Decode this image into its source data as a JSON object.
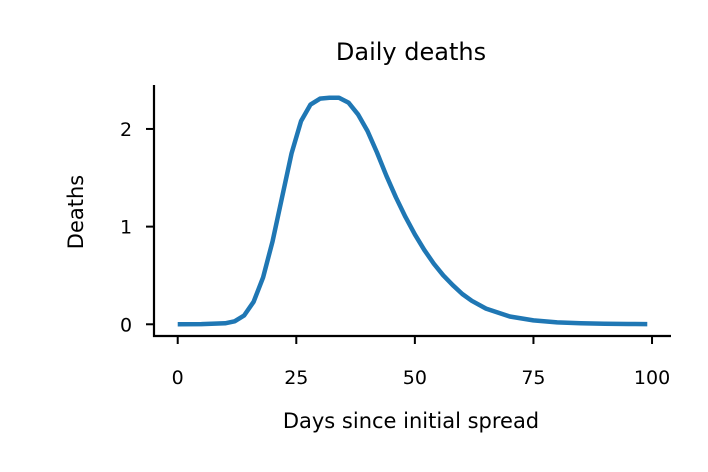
{
  "chart_data": {
    "type": "line",
    "title": "Daily deaths",
    "xlabel": "Days since initial spread",
    "ylabel": "Deaths",
    "xlim": [
      -5,
      104
    ],
    "ylim": [
      -0.12,
      2.45
    ],
    "xticks": [
      0,
      25,
      50,
      75,
      100
    ],
    "yticks": [
      0,
      1,
      2
    ],
    "grid": false,
    "legend": "none",
    "series": [
      {
        "color": "#1f77b4",
        "x": [
          0,
          5,
          10,
          12,
          14,
          16,
          18,
          20,
          22,
          24,
          26,
          28,
          30,
          32,
          34,
          36,
          38,
          40,
          42,
          44,
          46,
          48,
          50,
          52,
          54,
          56,
          58,
          60,
          62,
          65,
          70,
          75,
          80,
          85,
          90,
          95,
          99
        ],
        "y": [
          0,
          0.001,
          0.01,
          0.03,
          0.09,
          0.23,
          0.48,
          0.85,
          1.3,
          1.75,
          2.08,
          2.25,
          2.31,
          2.32,
          2.32,
          2.27,
          2.15,
          1.98,
          1.76,
          1.52,
          1.3,
          1.1,
          0.92,
          0.76,
          0.62,
          0.5,
          0.4,
          0.31,
          0.24,
          0.16,
          0.08,
          0.04,
          0.02,
          0.01,
          0.005,
          0.003,
          0.002
        ]
      }
    ]
  }
}
